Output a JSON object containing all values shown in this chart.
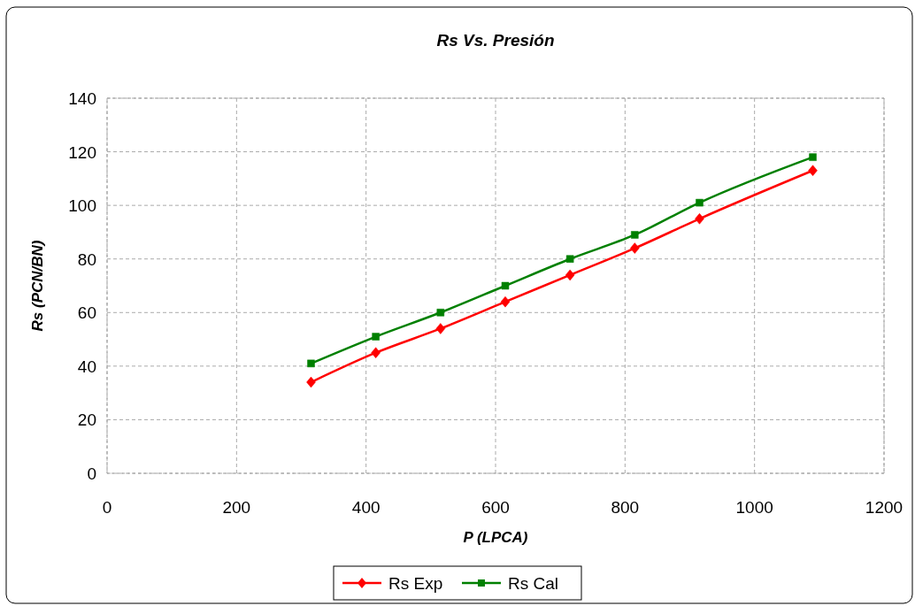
{
  "chart_data": {
    "type": "line",
    "title": "Rs Vs. Presión",
    "xlabel": "P (LPCA)",
    "ylabel": "Rs (PCN/BN)",
    "x": [
      315,
      415,
      515,
      615,
      715,
      815,
      915,
      1090
    ],
    "series": [
      {
        "name": "Rs Exp",
        "color": "#ff0000",
        "marker": "diamond",
        "values": [
          34,
          45,
          54,
          64,
          74,
          84,
          95,
          113
        ]
      },
      {
        "name": "Rs Cal",
        "color": "#008000",
        "marker": "square",
        "values": [
          41,
          51,
          60,
          70,
          80,
          89,
          101,
          118
        ]
      }
    ],
    "xlim": [
      0,
      1200
    ],
    "xticks": [
      0,
      200,
      400,
      600,
      800,
      1000,
      1200
    ],
    "ylim": [
      0,
      140
    ],
    "yticks": [
      0,
      20,
      40,
      60,
      80,
      100,
      120,
      140
    ],
    "grid": true,
    "legend": "bottom",
    "line_style": "solid"
  }
}
